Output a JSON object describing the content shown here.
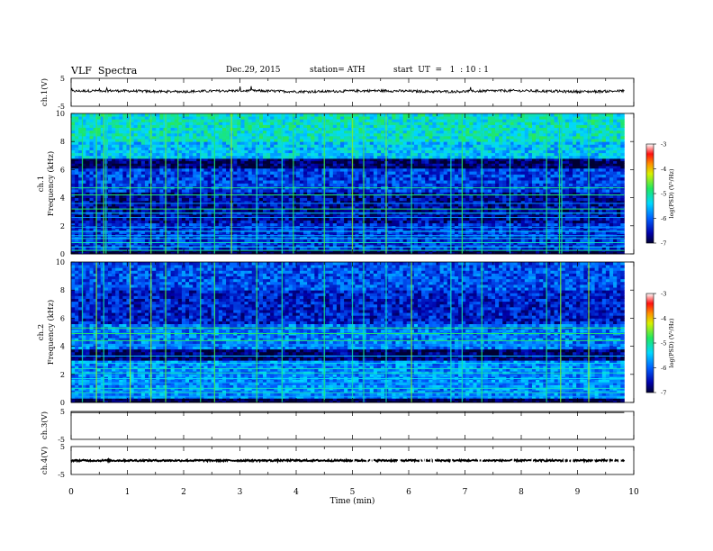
{
  "header": {
    "title": "VLF  Spectra",
    "date": "Dec.29, 2015",
    "station": "station= ATH",
    "start_ut": "start  UT  =   1  : 10 : 1"
  },
  "chart_data": [
    {
      "type": "line",
      "name": "ch1-waveform",
      "ylabel": "ch.1(V)",
      "yticks": [
        "5",
        "-5"
      ],
      "ylim": [
        -5,
        5
      ],
      "xlim": [
        0,
        10
      ],
      "x_end": 9.83,
      "baseline": 0.4,
      "color": "#000000"
    },
    {
      "type": "heatmap",
      "name": "ch1-spectrogram",
      "ylabel_top": "ch.1",
      "ylabel": "Frequency  (kHz)",
      "yticks": [
        "0",
        "2",
        "4",
        "6",
        "8",
        "10"
      ],
      "ylim": [
        0,
        10
      ],
      "xlim": [
        0,
        9.83
      ],
      "colorbar": {
        "label": "log(PSD) (V²/Hz)",
        "ticks": [
          "-3",
          "-4",
          "-5",
          "-6",
          "-7"
        ],
        "range": [
          -7,
          -3
        ]
      },
      "bands": [
        {
          "f0": 0.0,
          "f1": 0.3,
          "level": -7.0
        },
        {
          "f0": 0.3,
          "f1": 2.2,
          "level": -6.3
        },
        {
          "f0": 2.2,
          "f1": 4.4,
          "level": -6.6
        },
        {
          "f0": 4.4,
          "f1": 6.1,
          "level": -6.2
        },
        {
          "f0": 6.1,
          "f1": 6.8,
          "level": -6.8
        },
        {
          "f0": 6.8,
          "f1": 8.0,
          "level": -5.5
        },
        {
          "f0": 8.0,
          "f1": 10.0,
          "level": -5.2
        }
      ],
      "lines_khz": [
        0.25,
        0.5,
        0.8,
        1.1,
        1.3,
        1.6,
        1.9,
        2.6,
        2.9,
        3.2,
        3.6,
        4.2,
        4.7
      ],
      "spikes_min": [
        0.2,
        0.45,
        0.58,
        0.62,
        1.05,
        1.42,
        1.68,
        1.9,
        2.3,
        2.55,
        2.85,
        3.3,
        3.75,
        3.95,
        4.5,
        5.0,
        5.2,
        5.6,
        6.05,
        6.75,
        6.95,
        7.3,
        7.8,
        8.45,
        8.68,
        8.72,
        9.2
      ]
    },
    {
      "type": "heatmap",
      "name": "ch2-spectrogram",
      "ylabel_top": "ch.2",
      "ylabel": "Frequency  (kHz)",
      "yticks": [
        "0",
        "2",
        "4",
        "6",
        "8",
        "10"
      ],
      "ylim": [
        0,
        10
      ],
      "xlim": [
        0,
        9.83
      ],
      "colorbar": {
        "label": "log(PSD) (V²/Hz)",
        "ticks": [
          "-3",
          "-4",
          "-5",
          "-6",
          "-7"
        ],
        "range": [
          -7,
          -3
        ]
      },
      "bands": [
        {
          "f0": 0.0,
          "f1": 0.3,
          "level": -7.0
        },
        {
          "f0": 0.3,
          "f1": 3.0,
          "level": -5.8
        },
        {
          "f0": 3.0,
          "f1": 3.8,
          "level": -6.8
        },
        {
          "f0": 3.8,
          "f1": 5.6,
          "level": -5.9
        },
        {
          "f0": 5.6,
          "f1": 8.0,
          "level": -6.4
        },
        {
          "f0": 8.0,
          "f1": 10.0,
          "level": -6.1
        }
      ],
      "lines_khz": [
        0.4,
        0.7,
        1.0,
        1.4,
        1.7,
        2.1,
        2.4,
        2.8,
        3.3,
        4.1,
        4.4,
        4.9,
        5.3
      ],
      "spikes_min": [
        0.2,
        0.45,
        0.58,
        1.05,
        1.42,
        1.68,
        2.3,
        2.55,
        3.3,
        3.75,
        4.5,
        5.0,
        5.2,
        5.6,
        6.05,
        6.75,
        6.95,
        7.3,
        8.45,
        8.7,
        9.2
      ]
    },
    {
      "type": "line",
      "name": "ch3-waveform",
      "ylabel": "ch.3(V)",
      "yticks": [
        "5",
        "-5"
      ],
      "ylim": [
        -5,
        5
      ],
      "xlim": [
        0,
        10
      ],
      "x_end": 9.83,
      "baseline": 4.6,
      "color": "#000000"
    },
    {
      "type": "line",
      "name": "ch4-waveform",
      "ylabel": "ch.4(V)",
      "yticks": [
        "5",
        "-5"
      ],
      "ylim": [
        -5,
        5
      ],
      "xlim": [
        0,
        10
      ],
      "x_end": 9.83,
      "baseline": 0.0,
      "color": "#000000"
    }
  ],
  "xaxis": {
    "label": "Time  (min)",
    "ticks": [
      "0",
      "1",
      "2",
      "3",
      "4",
      "5",
      "6",
      "7",
      "8",
      "9",
      "10"
    ],
    "xlim": [
      0,
      10
    ]
  }
}
